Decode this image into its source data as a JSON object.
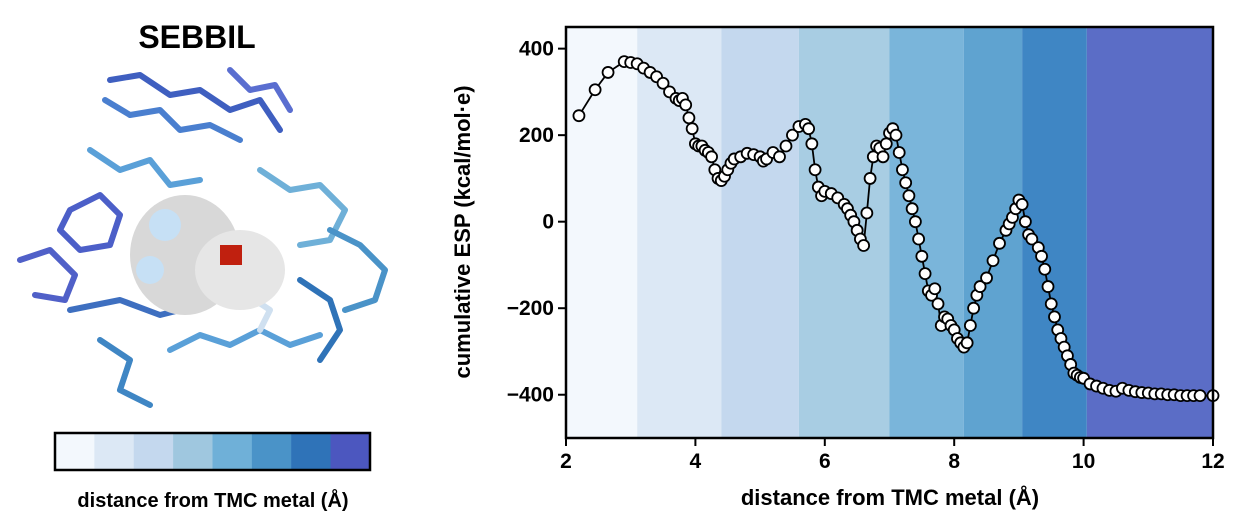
{
  "panel": {
    "title": "SEBBIL",
    "colorbar_colors": [
      "#f3f8fd",
      "#dce8f5",
      "#c4d8ee",
      "#9fc7df",
      "#6fb0d8",
      "#4a93c8",
      "#2f73b8",
      "#4c57bf"
    ],
    "colorbar_label": "distance from TMC metal (Å)"
  },
  "chart_data": {
    "type": "line",
    "xlabel": "distance from TMC metal (Å)",
    "ylabel": "cumulative ESP (kcal/mol·e)",
    "xlim": [
      2,
      12
    ],
    "ylim": [
      -500,
      450
    ],
    "xticks": [
      2,
      4,
      6,
      8,
      10,
      12
    ],
    "yticks": [
      {
        "value": -400,
        "label": "−400"
      },
      {
        "value": -200,
        "label": "−200"
      },
      0,
      200,
      400
    ],
    "bands": {
      "edges": [
        2,
        3.1,
        4.4,
        5.6,
        7.0,
        8.15,
        9.05,
        10.05,
        12
      ],
      "colors": [
        "#f3f8fd",
        "#dce8f5",
        "#c4d8ee",
        "#a8cde3",
        "#7ab5da",
        "#5fa3d0",
        "#3f86c4",
        "#5b6dc6"
      ]
    },
    "series": [
      {
        "color": "#000000",
        "marker_fill": "#ffffff",
        "x": [
          2.2,
          2.45,
          2.65,
          2.9,
          3.0,
          3.1,
          3.2,
          3.3,
          3.4,
          3.5,
          3.6,
          3.7,
          3.75,
          3.8,
          3.85,
          3.9,
          3.95,
          4.0,
          4.05,
          4.1,
          4.15,
          4.2,
          4.25,
          4.3,
          4.35,
          4.4,
          4.45,
          4.5,
          4.55,
          4.6,
          4.7,
          4.8,
          4.9,
          5.0,
          5.05,
          5.1,
          5.2,
          5.3,
          5.4,
          5.5,
          5.6,
          5.7,
          5.75,
          5.8,
          5.85,
          5.9,
          5.95,
          6.0,
          6.1,
          6.2,
          6.3,
          6.35,
          6.4,
          6.45,
          6.5,
          6.55,
          6.6,
          6.65,
          6.7,
          6.75,
          6.8,
          6.85,
          6.9,
          6.95,
          7.0,
          7.05,
          7.1,
          7.15,
          7.2,
          7.25,
          7.3,
          7.35,
          7.4,
          7.45,
          7.5,
          7.55,
          7.6,
          7.65,
          7.7,
          7.75,
          7.8,
          7.85,
          7.9,
          7.95,
          8.0,
          8.05,
          8.1,
          8.15,
          8.2,
          8.25,
          8.3,
          8.35,
          8.4,
          8.5,
          8.6,
          8.7,
          8.8,
          8.85,
          8.9,
          8.95,
          9.0,
          9.05,
          9.1,
          9.15,
          9.2,
          9.3,
          9.35,
          9.4,
          9.45,
          9.5,
          9.55,
          9.6,
          9.65,
          9.7,
          9.75,
          9.8,
          9.85,
          9.9,
          9.95,
          10.0,
          10.1,
          10.2,
          10.3,
          10.4,
          10.5,
          10.6,
          10.7,
          10.8,
          10.9,
          11.0,
          11.1,
          11.2,
          11.3,
          11.4,
          11.5,
          11.6,
          11.7,
          11.8,
          12.0
        ],
        "values": [
          245,
          305,
          345,
          370,
          368,
          365,
          355,
          345,
          335,
          320,
          300,
          285,
          280,
          285,
          270,
          240,
          215,
          180,
          175,
          175,
          165,
          160,
          150,
          120,
          100,
          95,
          105,
          120,
          135,
          145,
          150,
          158,
          155,
          150,
          140,
          145,
          160,
          150,
          175,
          200,
          220,
          225,
          215,
          180,
          120,
          80,
          60,
          70,
          65,
          55,
          40,
          30,
          15,
          0,
          -20,
          -40,
          -55,
          20,
          100,
          150,
          175,
          170,
          150,
          180,
          205,
          215,
          200,
          160,
          120,
          90,
          60,
          30,
          0,
          -40,
          -80,
          -120,
          -160,
          -170,
          -155,
          -190,
          -240,
          -220,
          -225,
          -240,
          -250,
          -270,
          -280,
          -290,
          -280,
          -240,
          -200,
          -170,
          -150,
          -130,
          -90,
          -50,
          -20,
          -5,
          10,
          30,
          50,
          40,
          0,
          -30,
          -40,
          -60,
          -80,
          -110,
          -150,
          -190,
          -220,
          -250,
          -270,
          -290,
          -310,
          -330,
          -350,
          -355,
          -360,
          -362,
          -375,
          -380,
          -385,
          -390,
          -392,
          -385,
          -390,
          -393,
          -395,
          -396,
          -398,
          -398,
          -400,
          -400,
          -402,
          -402,
          -402,
          -402,
          -402
        ]
      }
    ]
  }
}
